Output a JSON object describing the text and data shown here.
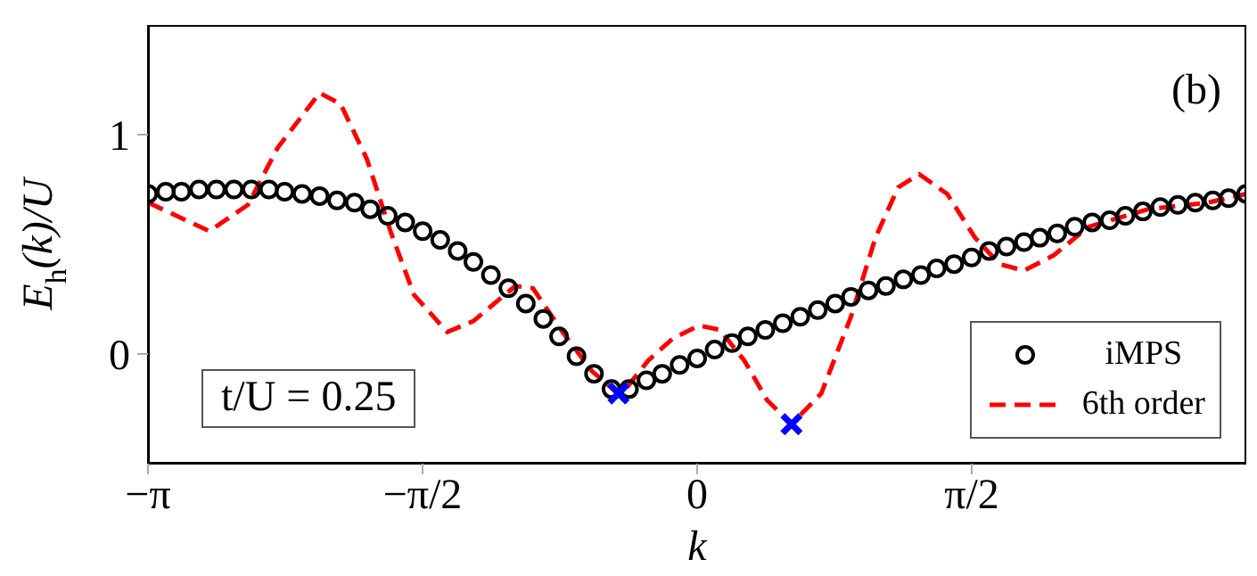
{
  "chart_data": {
    "type": "scatter",
    "xlabel": "k",
    "ylabel": "E$_{h}$(k)/U",
    "xlim": [
      -3.1416,
      3.1416
    ],
    "ylim": [
      -0.5,
      1.5
    ],
    "xticks": [
      {
        "value": -3.1416,
        "label": "−π"
      },
      {
        "value": -1.5708,
        "label": "−π/2"
      },
      0,
      {
        "value": 1.5708,
        "label": "π/2"
      }
    ],
    "yticks": [
      0,
      1
    ],
    "grid": false,
    "legend": "bottom right",
    "annotations": [
      "(b)",
      "t/U = 0.25"
    ],
    "series": [
      {
        "name": "iMPS",
        "marker": "circle",
        "color": "#000000",
        "x": [
          -3.14,
          -3.04,
          -2.95,
          -2.85,
          -2.75,
          -2.65,
          -2.55,
          -2.45,
          -2.36,
          -2.26,
          -2.16,
          -2.06,
          -1.96,
          -1.87,
          -1.77,
          -1.67,
          -1.57,
          -1.47,
          -1.37,
          -1.28,
          -1.18,
          -1.08,
          -0.98,
          -0.88,
          -0.79,
          -0.69,
          -0.59,
          -0.49,
          -0.39,
          -0.29,
          -0.2,
          -0.1,
          0,
          0.1,
          0.2,
          0.29,
          0.39,
          0.49,
          0.59,
          0.69,
          0.79,
          0.88,
          0.98,
          1.08,
          1.18,
          1.28,
          1.37,
          1.47,
          1.57,
          1.67,
          1.77,
          1.87,
          1.96,
          2.06,
          2.16,
          2.26,
          2.36,
          2.45,
          2.55,
          2.65,
          2.75,
          2.85,
          2.95,
          3.04,
          3.14
        ],
        "values": [
          0.73,
          0.74,
          0.74,
          0.75,
          0.75,
          0.75,
          0.75,
          0.75,
          0.74,
          0.73,
          0.72,
          0.7,
          0.69,
          0.66,
          0.63,
          0.6,
          0.56,
          0.52,
          0.47,
          0.42,
          0.36,
          0.3,
          0.23,
          0.16,
          0.08,
          -0.01,
          -0.09,
          -0.16,
          -0.16,
          -0.12,
          -0.09,
          -0.05,
          -0.02,
          0.02,
          0.05,
          0.08,
          0.11,
          0.14,
          0.17,
          0.2,
          0.23,
          0.26,
          0.29,
          0.31,
          0.34,
          0.36,
          0.39,
          0.41,
          0.44,
          0.47,
          0.49,
          0.51,
          0.53,
          0.55,
          0.58,
          0.6,
          0.61,
          0.63,
          0.65,
          0.67,
          0.68,
          0.69,
          0.7,
          0.71,
          0.73
        ]
      },
      {
        "name": "6th order",
        "type": "line",
        "marker": "none",
        "line_style": "dashed",
        "color": "#ff0000",
        "x": [
          -3.14,
          -2.79,
          -2.57,
          -2.4,
          -2.16,
          -2.04,
          -1.89,
          -1.75,
          -1.62,
          -1.43,
          -1.28,
          -1.04,
          -0.94,
          -0.77,
          -0.6,
          -0.45,
          -0.41,
          -0.28,
          -0.14,
          0.01,
          0.13,
          0.27,
          0.4,
          0.54,
          0.71,
          0.88,
          1.02,
          1.15,
          1.27,
          1.43,
          1.59,
          1.73,
          1.87,
          2.04,
          2.24,
          2.58,
          2.92,
          3.14
        ],
        "values": [
          0.69,
          0.56,
          0.68,
          0.94,
          1.19,
          1.14,
          0.89,
          0.55,
          0.27,
          0.1,
          0.15,
          0.31,
          0.3,
          0.1,
          -0.08,
          -0.18,
          -0.16,
          -0.03,
          0.07,
          0.13,
          0.11,
          -0.03,
          -0.21,
          -0.32,
          -0.18,
          0.17,
          0.53,
          0.76,
          0.82,
          0.73,
          0.53,
          0.41,
          0.38,
          0.45,
          0.58,
          0.66,
          0.69,
          0.73
        ]
      },
      {
        "marker": "cross",
        "color": "#0000ff",
        "x": [
          -0.45,
          0.54
        ],
        "values": [
          -0.18,
          -0.32
        ]
      }
    ]
  }
}
